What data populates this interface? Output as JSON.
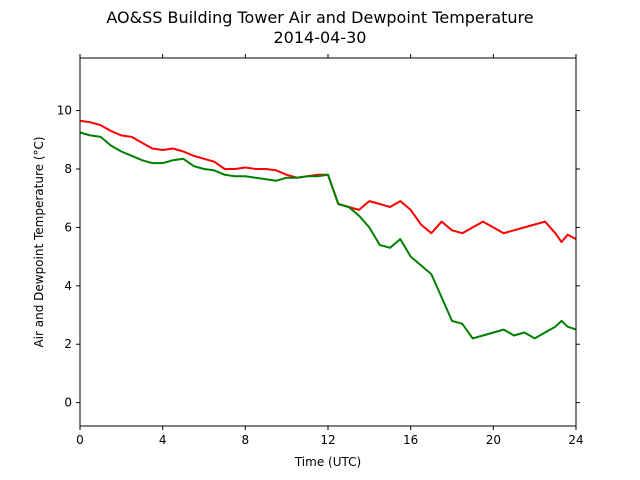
{
  "title": {
    "line1": "AO&SS Building Tower Air and Dewpoint Temperature",
    "line2": "2014-04-30"
  },
  "chart_data": {
    "type": "line",
    "title": "AO&SS Building Tower Air and Dewpoint Temperature\n2014-04-30",
    "xlabel": "Time (UTC)",
    "ylabel": "Air and Dewpoint Temperature (°C)",
    "xlim": [
      0,
      24
    ],
    "ylim": [
      -0.8,
      11.8
    ],
    "xticks": [
      0,
      4,
      8,
      12,
      16,
      20,
      24
    ],
    "yticks": [
      0,
      2,
      4,
      6,
      8,
      10
    ],
    "grid": false,
    "legend": "none",
    "series": [
      {
        "color": "#ff0000",
        "x": [
          0,
          0.5,
          1.0,
          1.5,
          2.0,
          2.5,
          3.0,
          3.5,
          4.0,
          4.5,
          5.0,
          5.5,
          6.0,
          6.5,
          7.0,
          7.5,
          8.0,
          8.5,
          9.0,
          9.5,
          10.0,
          10.5,
          11.0,
          11.5,
          12.0,
          12.5,
          13.0,
          13.5,
          14.0,
          14.5,
          15.0,
          15.5,
          16.0,
          16.5,
          17.0,
          17.5,
          18.0,
          18.5,
          19.0,
          19.5,
          20.0,
          20.5,
          21.0,
          21.5,
          22.0,
          22.5,
          23.0,
          23.3,
          23.6,
          24.0
        ],
        "y": [
          9.65,
          9.6,
          9.5,
          9.3,
          9.15,
          9.1,
          8.9,
          8.7,
          8.65,
          8.7,
          8.6,
          8.45,
          8.35,
          8.25,
          8.0,
          8.0,
          8.05,
          8.0,
          8.0,
          7.95,
          7.8,
          7.7,
          7.75,
          7.8,
          7.8,
          6.8,
          6.7,
          6.6,
          6.9,
          6.8,
          6.7,
          6.9,
          6.6,
          6.1,
          5.8,
          6.2,
          5.9,
          5.8,
          6.0,
          6.2,
          6.0,
          5.8,
          5.9,
          6.0,
          6.1,
          6.2,
          5.8,
          5.5,
          5.75,
          5.6
        ]
      },
      {
        "color": "#008000",
        "x": [
          0,
          0.5,
          1.0,
          1.5,
          2.0,
          2.5,
          3.0,
          3.5,
          4.0,
          4.5,
          5.0,
          5.5,
          6.0,
          6.5,
          7.0,
          7.5,
          8.0,
          8.5,
          9.0,
          9.5,
          10.0,
          10.5,
          11.0,
          11.5,
          12.0,
          12.5,
          13.0,
          13.5,
          14.0,
          14.5,
          15.0,
          15.5,
          16.0,
          16.5,
          17.0,
          17.5,
          18.0,
          18.5,
          19.0,
          19.5,
          20.0,
          20.5,
          21.0,
          21.5,
          22.0,
          22.5,
          23.0,
          23.3,
          23.6,
          24.0
        ],
        "y": [
          9.25,
          9.15,
          9.1,
          8.8,
          8.6,
          8.45,
          8.3,
          8.2,
          8.2,
          8.3,
          8.35,
          8.1,
          8.0,
          7.95,
          7.8,
          7.75,
          7.75,
          7.7,
          7.65,
          7.6,
          7.7,
          7.7,
          7.75,
          7.75,
          7.8,
          6.8,
          6.7,
          6.4,
          6.0,
          5.4,
          5.3,
          5.6,
          5.0,
          4.7,
          4.4,
          3.6,
          2.8,
          2.7,
          2.2,
          2.3,
          2.4,
          2.5,
          2.3,
          2.4,
          2.2,
          2.4,
          2.6,
          2.8,
          2.6,
          2.5
        ]
      }
    ]
  }
}
